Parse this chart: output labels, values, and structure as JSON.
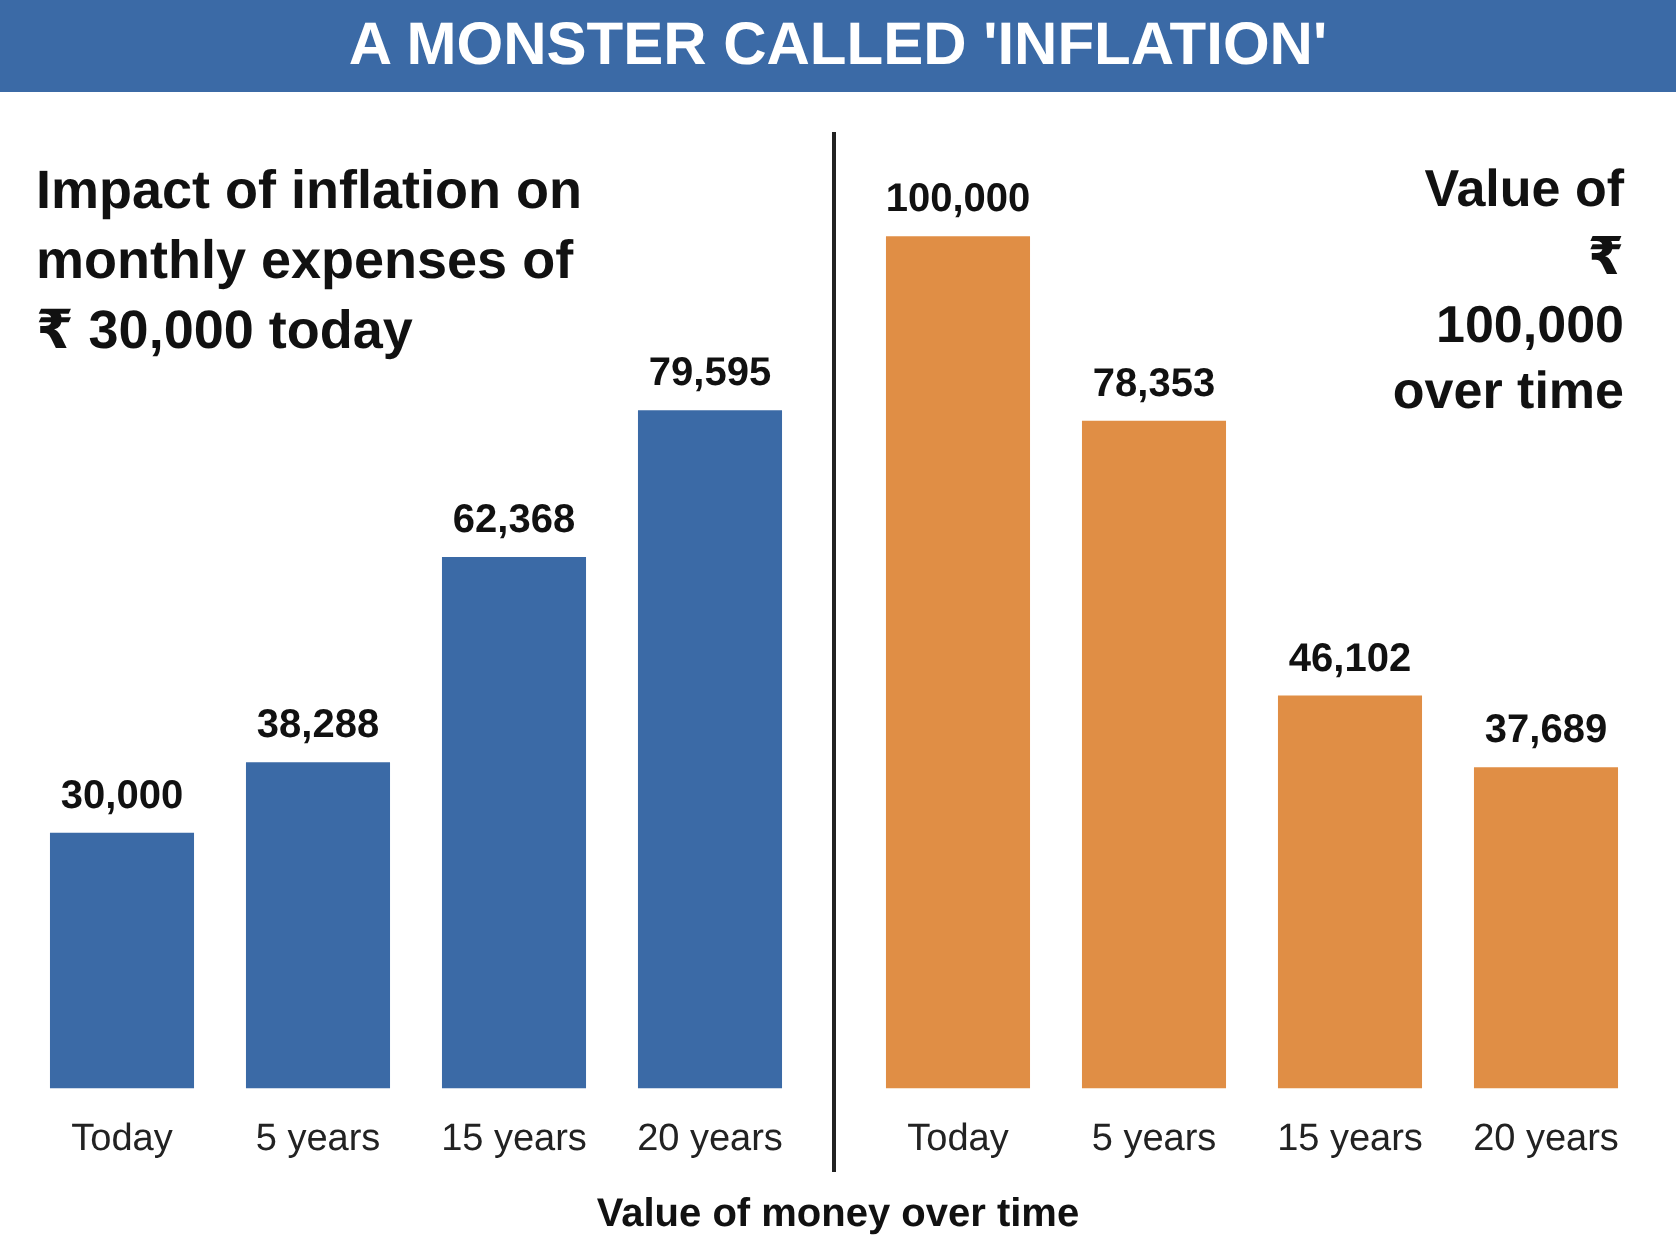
{
  "chart_data": [
    {
      "type": "bar",
      "title": "Impact of inflation on monthly expenses of ₹ 30,000 today",
      "categories": [
        "Today",
        "5 years",
        "15 years",
        "20 years"
      ],
      "values": [
        30000,
        38288,
        62368,
        79595
      ],
      "value_labels": [
        "30,000",
        "38,288",
        "62,368",
        "79,595"
      ],
      "color": "#3b6aa6",
      "tick_labels": "x",
      "annotations": [
        "A MONSTER CALLED 'INFLATION'",
        "Value of money over time"
      ]
    },
    {
      "type": "bar",
      "title": "Value of ₹ 100,000 over time",
      "categories": [
        "Today",
        "5 years",
        "15 years",
        "20 years"
      ],
      "values": [
        100000,
        78353,
        46102,
        37689
      ],
      "value_labels": [
        "100,000",
        "78,353",
        "46,102",
        "37,689"
      ],
      "color": "#e08e45",
      "tick_labels": "x"
    }
  ]
}
